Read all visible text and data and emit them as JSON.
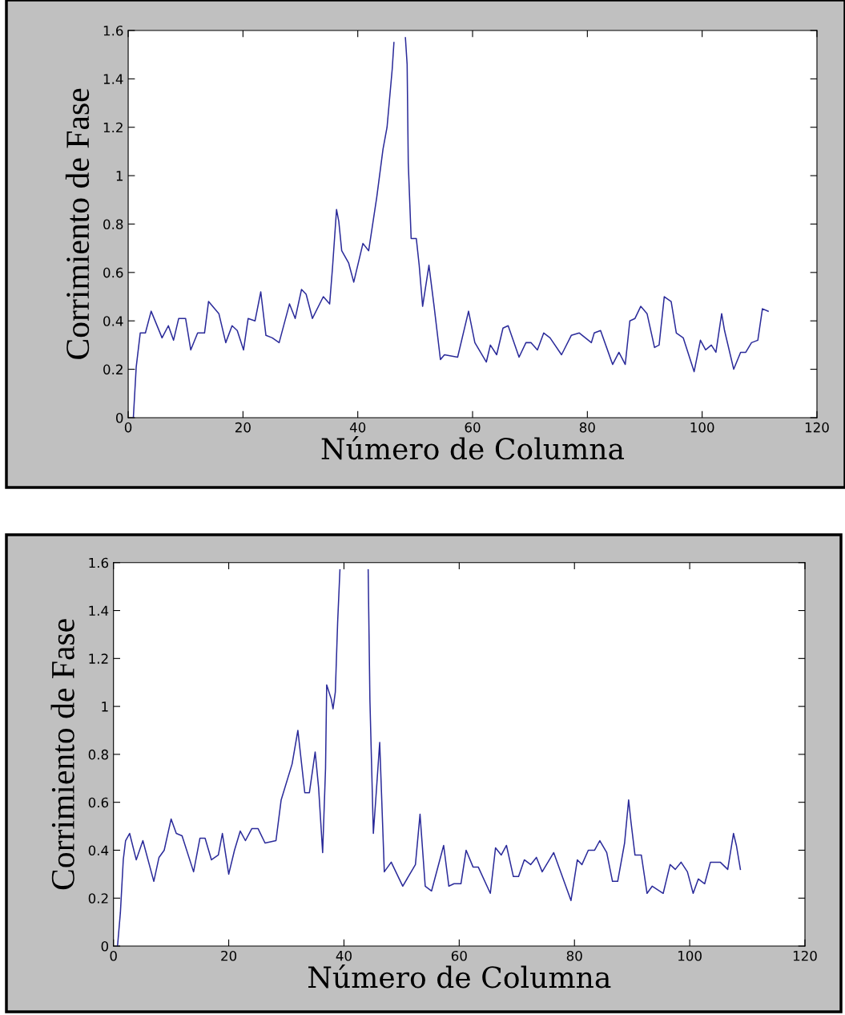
{
  "chart_data": [
    {
      "type": "line",
      "xlabel": "Número de Columna",
      "ylabel": "Corrimiento de Fase",
      "xlim": [
        0,
        120
      ],
      "xticks": [
        0,
        20,
        40,
        60,
        80,
        100,
        120
      ],
      "ylim": [
        0,
        1.6
      ],
      "yticks": [
        0,
        0.2,
        0.4,
        0.6,
        0.8,
        1,
        1.2,
        1.4,
        1.6
      ],
      "grid": false,
      "marker": "none",
      "line_style": "solid",
      "series": [
        {
          "color": "#2b2b9a",
          "x": [
            0.9,
            1.4,
            2.1,
            3.0,
            4.0,
            5.9,
            7.0,
            7.9,
            8.8,
            10.0,
            10.9,
            12.1,
            13.3,
            14.0,
            15.8,
            17.0,
            18.1,
            19.0,
            20.1,
            20.9,
            22.1,
            23.1,
            24.0,
            25.1,
            26.3,
            28.1,
            29.1,
            30.2,
            31.0,
            32.1,
            34.0,
            35.1,
            35.6,
            36.3,
            36.7,
            37.2,
            38.4,
            39.3,
            40.9,
            41.9,
            43.3,
            44.4,
            45.1,
            46.0,
            46.3,
            47.3,
            48.3,
            48.6,
            48.8,
            49.3,
            50.2,
            50.7,
            51.3,
            52.4,
            53.3,
            54.4,
            55.1,
            57.4,
            59.3,
            60.4,
            62.4,
            63.1,
            64.2,
            65.3,
            66.2,
            68.1,
            69.3,
            70.2,
            71.3,
            72.4,
            73.5,
            75.5,
            77.2,
            78.6,
            80.7,
            81.2,
            82.3,
            84.4,
            85.5,
            86.6,
            87.4,
            88.3,
            89.3,
            90.4,
            91.7,
            92.5,
            93.4,
            94.6,
            95.5,
            96.7,
            98.6,
            99.7,
            100.6,
            101.6,
            102.4,
            103.4,
            103.9,
            105.5,
            106.7,
            107.6,
            108.6,
            109.7,
            110.5,
            111.5
          ],
          "values": [
            0,
            0.21,
            0.35,
            0.35,
            0.44,
            0.33,
            0.38,
            0.32,
            0.41,
            0.41,
            0.28,
            0.35,
            0.35,
            0.48,
            0.43,
            0.31,
            0.38,
            0.36,
            0.28,
            0.41,
            0.4,
            0.52,
            0.34,
            0.33,
            0.31,
            0.47,
            0.41,
            0.53,
            0.51,
            0.41,
            0.5,
            0.47,
            0.62,
            0.86,
            0.81,
            0.69,
            0.64,
            0.56,
            0.72,
            0.69,
            0.91,
            1.11,
            1.2,
            1.44,
            1.55,
            null,
            1.57,
            1.46,
            1.05,
            0.74,
            0.74,
            0.63,
            0.46,
            0.63,
            0.46,
            0.24,
            0.26,
            0.25,
            0.44,
            0.31,
            0.23,
            0.3,
            0.26,
            0.37,
            0.38,
            0.25,
            0.31,
            0.31,
            0.28,
            0.35,
            0.33,
            0.26,
            0.34,
            0.35,
            0.31,
            0.35,
            0.36,
            0.22,
            0.27,
            0.22,
            0.4,
            0.41,
            0.46,
            0.43,
            0.29,
            0.3,
            0.5,
            0.48,
            0.35,
            0.33,
            0.19,
            0.32,
            0.28,
            0.3,
            0.27,
            0.43,
            0.36,
            0.2,
            0.27,
            0.27,
            0.31,
            0.32,
            0.45,
            0.44
          ]
        }
      ]
    },
    {
      "type": "line",
      "xlabel": "Número de Columna",
      "ylabel": "Corrimiento de Fase",
      "xlim": [
        0,
        120
      ],
      "xticks": [
        0,
        20,
        40,
        60,
        80,
        100,
        120
      ],
      "ylim": [
        0,
        1.6
      ],
      "yticks": [
        0,
        0.2,
        0.4,
        0.6,
        0.8,
        1,
        1.2,
        1.4,
        1.6
      ],
      "grid": false,
      "marker": "none",
      "line_style": "solid",
      "series": [
        {
          "color": "#2b2b9a",
          "x": [
            0.7,
            1.2,
            1.7,
            2.1,
            2.8,
            3.95,
            5.1,
            7.0,
            7.9,
            8.8,
            10.0,
            10.9,
            11.9,
            13.9,
            15.0,
            15.9,
            17.0,
            18.2,
            18.9,
            20.0,
            21.0,
            22.0,
            22.9,
            24.0,
            25.1,
            26.3,
            28.2,
            29.1,
            31.0,
            32.0,
            33.2,
            34.0,
            35.0,
            35.6,
            36.3,
            36.8,
            37.0,
            37.8,
            38.1,
            38.5,
            38.9,
            39.3,
            41.8,
            44.2,
            44.5,
            45.1,
            45.6,
            46.2,
            47.0,
            48.2,
            50.2,
            52.4,
            53.2,
            54.1,
            55.2,
            57.3,
            58.2,
            59.1,
            60.3,
            61.2,
            62.4,
            63.3,
            65.4,
            66.3,
            67.3,
            68.2,
            69.4,
            70.3,
            71.3,
            72.4,
            73.4,
            74.4,
            76.4,
            79.4,
            80.5,
            81.3,
            82.4,
            83.5,
            84.4,
            85.6,
            86.6,
            87.5,
            88.7,
            89.4,
            89.8,
            90.5,
            91.6,
            92.6,
            93.5,
            95.4,
            96.6,
            97.5,
            98.5,
            99.6,
            100.6,
            101.5,
            102.6,
            103.6,
            105.3,
            106.6,
            107.6,
            108.1,
            108.8
          ],
          "values": [
            0,
            0.14,
            0.36,
            0.44,
            0.47,
            0.36,
            0.44,
            0.27,
            0.37,
            0.4,
            0.53,
            0.47,
            0.46,
            0.31,
            0.45,
            0.45,
            0.36,
            0.38,
            0.47,
            0.3,
            0.4,
            0.48,
            0.44,
            0.49,
            0.49,
            0.43,
            0.44,
            0.61,
            0.76,
            0.9,
            0.64,
            0.64,
            0.81,
            0.66,
            0.39,
            0.74,
            1.09,
            1.03,
            0.99,
            1.06,
            1.35,
            1.57,
            null,
            1.57,
            1.03,
            0.47,
            0.64,
            0.85,
            0.31,
            0.35,
            0.25,
            0.34,
            0.55,
            0.25,
            0.23,
            0.42,
            0.25,
            0.26,
            0.26,
            0.4,
            0.33,
            0.33,
            0.22,
            0.41,
            0.38,
            0.42,
            0.29,
            0.29,
            0.36,
            0.34,
            0.37,
            0.31,
            0.39,
            0.19,
            0.36,
            0.34,
            0.4,
            0.4,
            0.44,
            0.39,
            0.27,
            0.27,
            0.43,
            0.61,
            0.52,
            0.38,
            0.38,
            0.22,
            0.25,
            0.22,
            0.34,
            0.32,
            0.35,
            0.31,
            0.22,
            0.28,
            0.26,
            0.35,
            0.35,
            0.32,
            0.47,
            0.42,
            0.32
          ]
        }
      ]
    }
  ]
}
